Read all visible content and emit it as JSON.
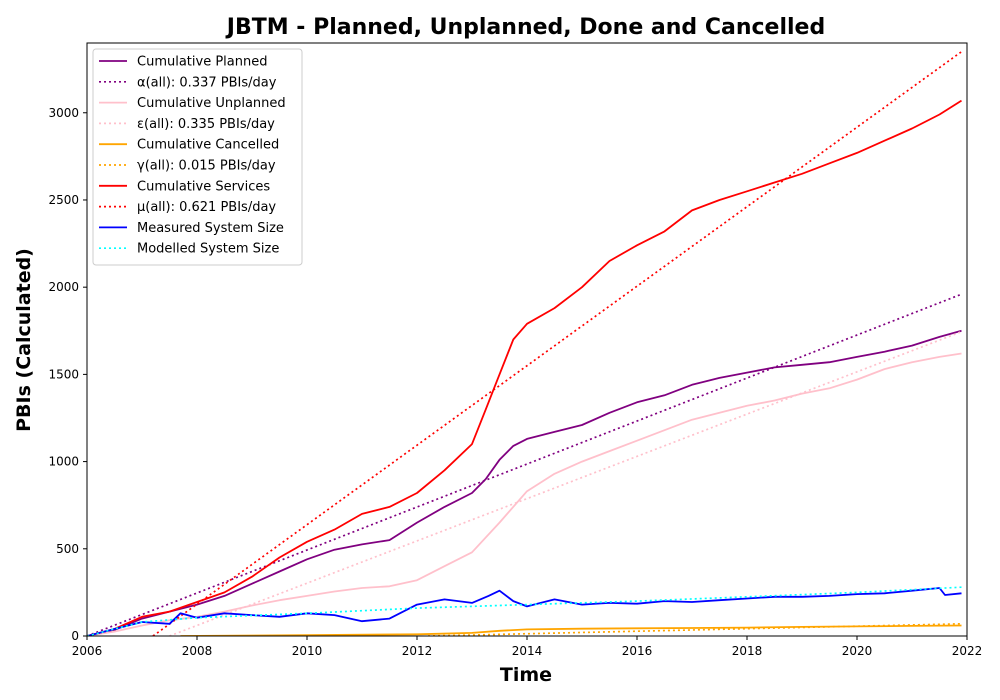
{
  "chart_data": {
    "type": "line",
    "title": "JBTM - Planned, Unplanned, Done  and Cancelled",
    "xlabel": "Time",
    "ylabel": "PBIs (Calculated)",
    "xlim": [
      2006,
      2022
    ],
    "ylim": [
      0,
      3400
    ],
    "x_ticks": [
      2006,
      2008,
      2010,
      2012,
      2014,
      2016,
      2018,
      2020,
      2022
    ],
    "y_ticks": [
      0,
      500,
      1000,
      1500,
      2000,
      2500,
      3000
    ],
    "legend_position": "top-left",
    "grid": false,
    "series": [
      {
        "name": "Cumulative Planned",
        "color": "#800080",
        "style": "solid",
        "points": [
          [
            2006,
            0
          ],
          [
            2006.5,
            35
          ],
          [
            2007,
            100
          ],
          [
            2007.5,
            140
          ],
          [
            2008,
            180
          ],
          [
            2008.5,
            230
          ],
          [
            2009,
            300
          ],
          [
            2009.5,
            370
          ],
          [
            2010,
            440
          ],
          [
            2010.5,
            495
          ],
          [
            2011,
            525
          ],
          [
            2011.5,
            550
          ],
          [
            2012,
            650
          ],
          [
            2012.5,
            740
          ],
          [
            2013,
            820
          ],
          [
            2013.25,
            900
          ],
          [
            2013.5,
            1010
          ],
          [
            2013.75,
            1090
          ],
          [
            2014,
            1130
          ],
          [
            2014.5,
            1170
          ],
          [
            2015,
            1210
          ],
          [
            2015.5,
            1280
          ],
          [
            2016,
            1340
          ],
          [
            2016.5,
            1380
          ],
          [
            2017,
            1440
          ],
          [
            2017.5,
            1480
          ],
          [
            2018,
            1510
          ],
          [
            2018.5,
            1540
          ],
          [
            2019,
            1555
          ],
          [
            2019.5,
            1570
          ],
          [
            2020,
            1600
          ],
          [
            2020.5,
            1630
          ],
          [
            2021,
            1665
          ],
          [
            2021.5,
            1715
          ],
          [
            2021.9,
            1750
          ]
        ]
      },
      {
        "name": "α(all): 0.337 PBIs/day",
        "color": "#800080",
        "style": "dotted",
        "points": [
          [
            2006,
            0
          ],
          [
            2021.9,
            1960
          ]
        ]
      },
      {
        "name": "Cumulative Unplanned",
        "color": "#ffc0cb",
        "style": "solid",
        "points": [
          [
            2006,
            0
          ],
          [
            2006.5,
            25
          ],
          [
            2007,
            60
          ],
          [
            2007.5,
            90
          ],
          [
            2008,
            110
          ],
          [
            2008.5,
            140
          ],
          [
            2009,
            175
          ],
          [
            2009.5,
            205
          ],
          [
            2010,
            230
          ],
          [
            2010.5,
            255
          ],
          [
            2011,
            275
          ],
          [
            2011.5,
            285
          ],
          [
            2012,
            320
          ],
          [
            2012.5,
            400
          ],
          [
            2013,
            480
          ],
          [
            2013.5,
            650
          ],
          [
            2014,
            830
          ],
          [
            2014.5,
            930
          ],
          [
            2015,
            1000
          ],
          [
            2015.5,
            1060
          ],
          [
            2016,
            1120
          ],
          [
            2016.5,
            1180
          ],
          [
            2017,
            1240
          ],
          [
            2017.5,
            1280
          ],
          [
            2018,
            1320
          ],
          [
            2018.5,
            1350
          ],
          [
            2019,
            1390
          ],
          [
            2019.5,
            1420
          ],
          [
            2020,
            1470
          ],
          [
            2020.5,
            1530
          ],
          [
            2021,
            1570
          ],
          [
            2021.5,
            1600
          ],
          [
            2021.9,
            1620
          ]
        ]
      },
      {
        "name": "ε(all): 0.335 PBIs/day",
        "color": "#ffc0cb",
        "style": "dotted",
        "points": [
          [
            2007.5,
            0
          ],
          [
            2021.9,
            1745
          ]
        ]
      },
      {
        "name": "Cumulative Cancelled",
        "color": "#ffa500",
        "style": "solid",
        "points": [
          [
            2007.7,
            0
          ],
          [
            2010,
            5
          ],
          [
            2012,
            10
          ],
          [
            2013,
            18
          ],
          [
            2013.5,
            30
          ],
          [
            2014,
            38
          ],
          [
            2015,
            42
          ],
          [
            2016,
            44
          ],
          [
            2017,
            46
          ],
          [
            2018,
            48
          ],
          [
            2019,
            52
          ],
          [
            2020,
            55
          ],
          [
            2021,
            58
          ],
          [
            2021.9,
            60
          ]
        ]
      },
      {
        "name": "γ(all): 0.015 PBIs/day",
        "color": "#ffa500",
        "style": "dotted",
        "points": [
          [
            2012.2,
            0
          ],
          [
            2021.9,
            70
          ]
        ]
      },
      {
        "name": "Cumulative Services",
        "color": "#ff0000",
        "style": "solid",
        "points": [
          [
            2006,
            0
          ],
          [
            2006.5,
            40
          ],
          [
            2007,
            110
          ],
          [
            2007.5,
            140
          ],
          [
            2008,
            195
          ],
          [
            2008.5,
            250
          ],
          [
            2009,
            340
          ],
          [
            2009.5,
            450
          ],
          [
            2010,
            540
          ],
          [
            2010.5,
            610
          ],
          [
            2011,
            700
          ],
          [
            2011.5,
            740
          ],
          [
            2012,
            820
          ],
          [
            2012.5,
            950
          ],
          [
            2013,
            1100
          ],
          [
            2013.25,
            1300
          ],
          [
            2013.5,
            1500
          ],
          [
            2013.75,
            1700
          ],
          [
            2014,
            1790
          ],
          [
            2014.5,
            1880
          ],
          [
            2015,
            2000
          ],
          [
            2015.5,
            2150
          ],
          [
            2016,
            2240
          ],
          [
            2016.5,
            2320
          ],
          [
            2017,
            2440
          ],
          [
            2017.5,
            2500
          ],
          [
            2018,
            2550
          ],
          [
            2018.5,
            2600
          ],
          [
            2019,
            2650
          ],
          [
            2019.5,
            2710
          ],
          [
            2020,
            2770
          ],
          [
            2020.5,
            2840
          ],
          [
            2021,
            2910
          ],
          [
            2021.5,
            2990
          ],
          [
            2021.9,
            3070
          ]
        ]
      },
      {
        "name": "μ(all): 0.621 PBIs/day",
        "color": "#ff0000",
        "style": "dotted",
        "points": [
          [
            2007.2,
            0
          ],
          [
            2021.9,
            3350
          ]
        ]
      },
      {
        "name": "Measured System Size",
        "color": "#0000ff",
        "style": "solid",
        "points": [
          [
            2006,
            0
          ],
          [
            2006.5,
            40
          ],
          [
            2007,
            80
          ],
          [
            2007.5,
            70
          ],
          [
            2007.7,
            130
          ],
          [
            2008,
            105
          ],
          [
            2008.5,
            130
          ],
          [
            2009,
            120
          ],
          [
            2009.5,
            110
          ],
          [
            2010,
            130
          ],
          [
            2010.5,
            120
          ],
          [
            2011,
            85
          ],
          [
            2011.5,
            100
          ],
          [
            2012,
            180
          ],
          [
            2012.5,
            210
          ],
          [
            2013,
            190
          ],
          [
            2013.3,
            230
          ],
          [
            2013.5,
            260
          ],
          [
            2013.75,
            200
          ],
          [
            2014,
            170
          ],
          [
            2014.5,
            210
          ],
          [
            2015,
            180
          ],
          [
            2015.5,
            190
          ],
          [
            2016,
            185
          ],
          [
            2016.5,
            200
          ],
          [
            2017,
            195
          ],
          [
            2017.5,
            205
          ],
          [
            2018,
            215
          ],
          [
            2018.5,
            225
          ],
          [
            2019,
            225
          ],
          [
            2019.5,
            230
          ],
          [
            2020,
            240
          ],
          [
            2020.5,
            245
          ],
          [
            2021,
            260
          ],
          [
            2021.5,
            275
          ],
          [
            2021.6,
            235
          ],
          [
            2021.9,
            245
          ]
        ]
      },
      {
        "name": "Modelled System Size",
        "color": "#00ffff",
        "style": "dotted",
        "points": [
          [
            2006,
            0
          ],
          [
            2007,
            80
          ],
          [
            2008,
            105
          ],
          [
            2010,
            130
          ],
          [
            2012,
            160
          ],
          [
            2014,
            180
          ],
          [
            2016,
            200
          ],
          [
            2018,
            225
          ],
          [
            2020,
            250
          ],
          [
            2021.9,
            280
          ]
        ]
      }
    ]
  }
}
